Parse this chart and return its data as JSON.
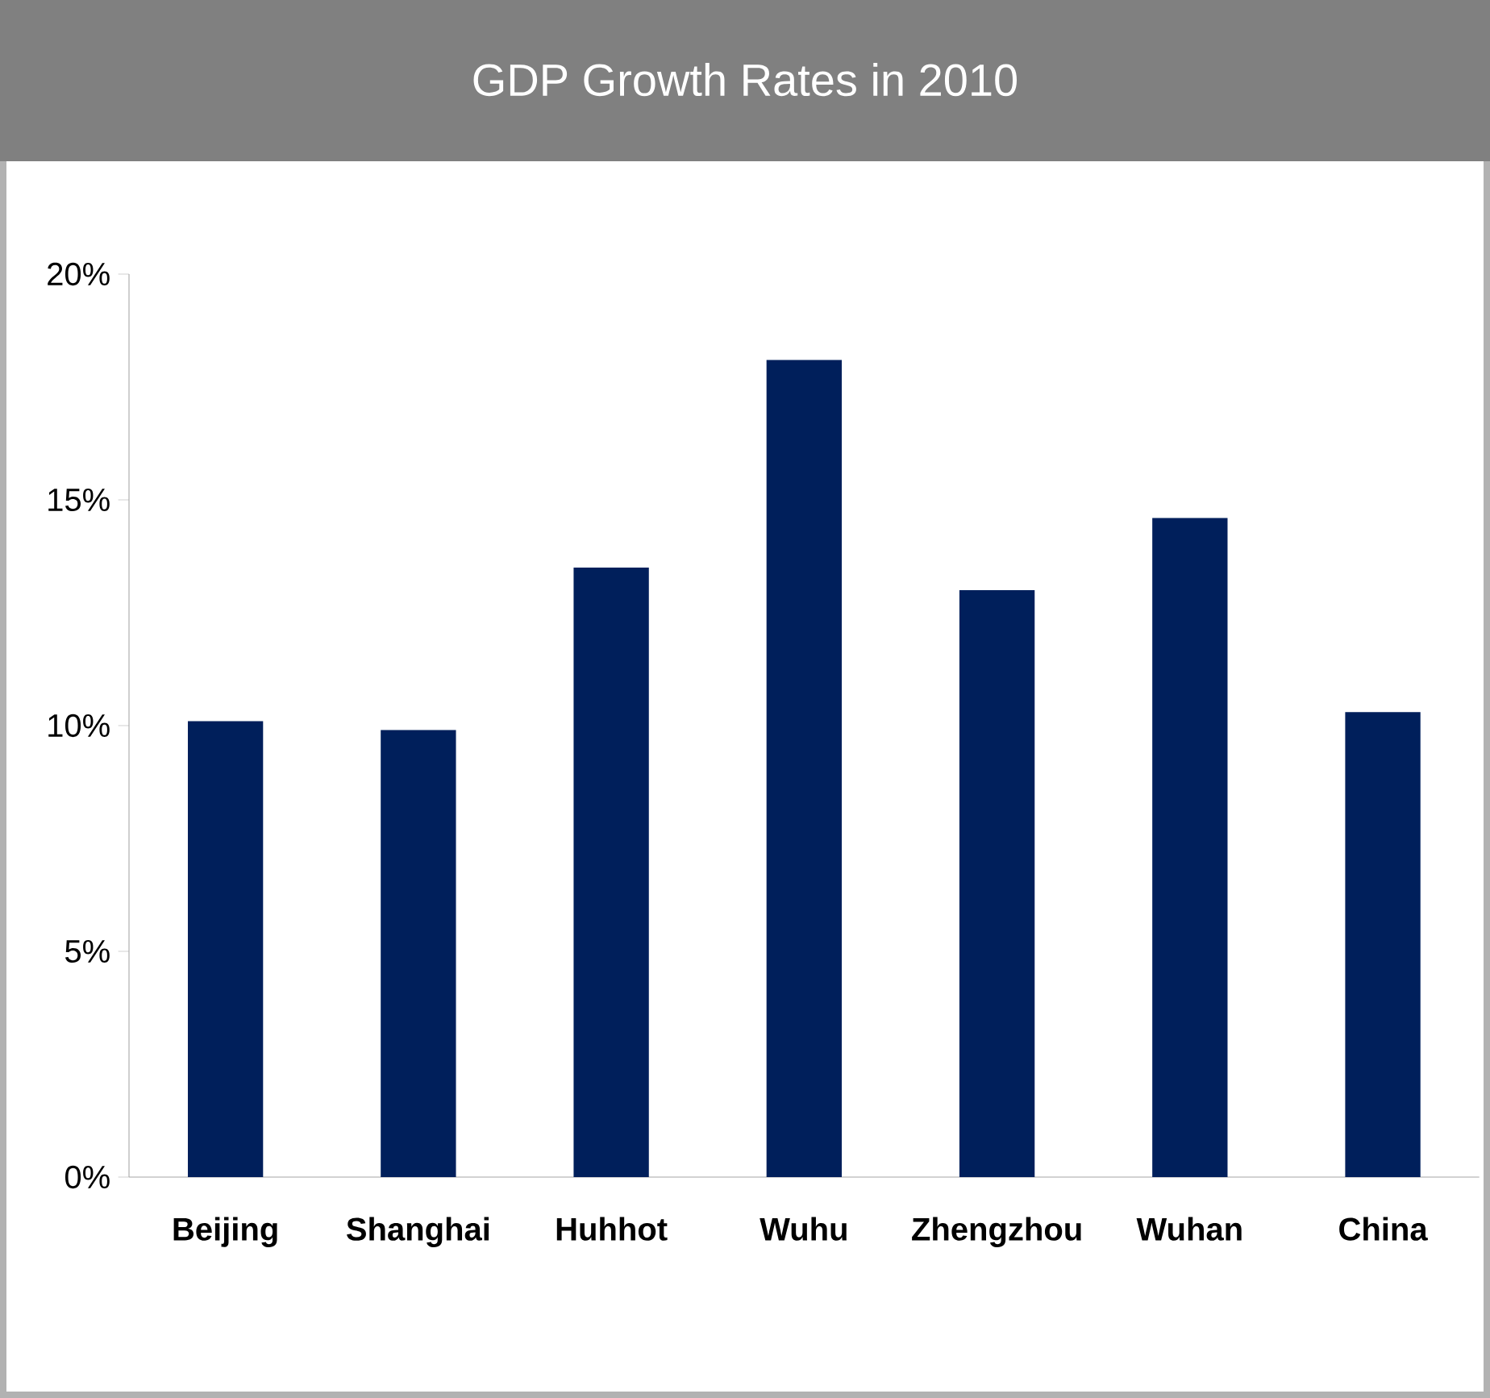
{
  "chart_data": {
    "type": "bar",
    "title": "GDP Growth Rates in 2010",
    "categories": [
      "Beijing",
      "Shanghai",
      "Huhhot",
      "Wuhu",
      "Zhengzhou",
      "Wuhan",
      "China"
    ],
    "values": [
      10.1,
      9.9,
      13.5,
      18.1,
      13.0,
      14.6,
      10.3
    ],
    "color": "#001f5b",
    "ylim": [
      0,
      20
    ],
    "yticks": [
      {
        "value": 0,
        "label": "0%"
      },
      {
        "value": 5,
        "label": "5%"
      },
      {
        "value": 10,
        "label": "10%"
      },
      {
        "value": 15,
        "label": "15%"
      },
      {
        "value": 20,
        "label": "20%"
      }
    ],
    "grid": false
  }
}
